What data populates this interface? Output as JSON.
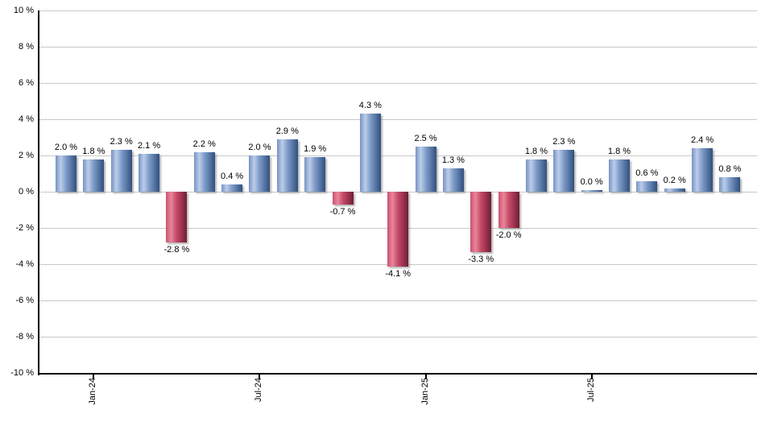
{
  "chart_data": {
    "type": "bar",
    "title": "",
    "xlabel": "",
    "ylabel": "",
    "ylim": [
      -10,
      10
    ],
    "ytick_step": 2,
    "grid": true,
    "legend_position": "none",
    "y_tick_labels": [
      "10 %",
      "8 %",
      "6 %",
      "4 %",
      "2 %",
      "0 %",
      "-2 %",
      "-4 %",
      "-6 %",
      "-8 %",
      "-10 %"
    ],
    "y_tick_values": [
      10,
      8,
      6,
      4,
      2,
      0,
      -2,
      -4,
      -6,
      -8,
      -10
    ],
    "values": [
      2.0,
      1.8,
      2.3,
      2.1,
      -2.8,
      2.2,
      0.4,
      2.0,
      2.9,
      1.9,
      -0.7,
      4.3,
      -4.1,
      2.5,
      1.3,
      -3.3,
      -2.0,
      1.8,
      2.3,
      0.0,
      1.8,
      0.6,
      0.2,
      2.4,
      0.8
    ],
    "bar_labels": [
      "2.0 %",
      "1.8 %",
      "2.3 %",
      "2.1 %",
      "-2.8 %",
      "2.2 %",
      "0.4 %",
      "2.0 %",
      "2.9 %",
      "1.9 %",
      "-0.7 %",
      "4.3 %",
      "-4.1 %",
      "2.5 %",
      "1.3 %",
      "-3.3 %",
      "-2.0 %",
      "1.8 %",
      "2.3 %",
      "0.0 %",
      "1.8 %",
      "0.6 %",
      "0.2 %",
      "2.4 %",
      "0.8 %"
    ],
    "x_tick_bar_indices": [
      1,
      7,
      13,
      19
    ],
    "x_tick_labels": [
      "Jan-24",
      "Jul-24",
      "Jan-25",
      "Jul-25"
    ],
    "colors": {
      "background": "#ffffff",
      "gridline": "#c9c9c9",
      "axis": "#000000",
      "label_text": "#000000",
      "positive_edge": "#7693c2",
      "positive_light": "#bccde9",
      "positive_mid": "#7e9cc9",
      "positive_dark": "#30507e",
      "negative_edge": "#cb5270",
      "negative_light": "#e8869c",
      "negative_mid": "#c64a68",
      "negative_dark": "#701d35"
    }
  }
}
